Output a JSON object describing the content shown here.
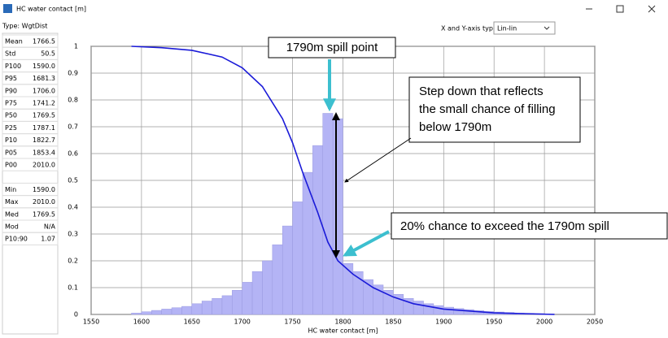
{
  "window": {
    "title": "HC water contact [m]",
    "type_label": "Type: WgtDist",
    "axis_types_label": "X and Y-axis types",
    "axis_types_value": "Lin-lin"
  },
  "stats": {
    "groups": [
      [
        [
          "Mean",
          "1766.5"
        ],
        [
          "Std",
          "50.5"
        ],
        [
          "P100",
          "1590.0"
        ],
        [
          "P95",
          "1681.3"
        ],
        [
          "P90",
          "1706.0"
        ],
        [
          "P75",
          "1741.2"
        ],
        [
          "P50",
          "1769.5"
        ],
        [
          "P25",
          "1787.1"
        ],
        [
          "P10",
          "1822.7"
        ],
        [
          "P05",
          "1853.4"
        ],
        [
          "P00",
          "2010.0"
        ]
      ],
      [
        [
          "Min",
          "1590.0"
        ],
        [
          "Max",
          "2010.0"
        ],
        [
          "Med",
          "1769.5"
        ],
        [
          "Mod",
          "N/A"
        ],
        [
          "P10:90",
          "1.07"
        ]
      ]
    ]
  },
  "chart_data": {
    "type": "histogram",
    "xlabel": "HC water contact [m]",
    "bins": [
      1590,
      1600,
      1610,
      1620,
      1630,
      1640,
      1650,
      1660,
      1670,
      1680,
      1690,
      1700,
      1710,
      1720,
      1730,
      1740,
      1750,
      1760,
      1770,
      1780,
      1790,
      1800,
      1810,
      1820,
      1830,
      1840,
      1850,
      1860,
      1870,
      1880,
      1890,
      1900,
      1910,
      1920,
      1930,
      1940,
      1950,
      1960,
      1970,
      1980,
      1990,
      2000,
      2010
    ],
    "values": [
      0.005,
      0.01,
      0.015,
      0.02,
      0.025,
      0.03,
      0.04,
      0.05,
      0.06,
      0.07,
      0.09,
      0.12,
      0.16,
      0.2,
      0.26,
      0.33,
      0.42,
      0.53,
      0.63,
      0.75,
      0.73,
      0.19,
      0.16,
      0.13,
      0.11,
      0.09,
      0.075,
      0.06,
      0.05,
      0.04,
      0.033,
      0.027,
      0.022,
      0.018,
      0.014,
      0.011,
      0.009,
      0.007,
      0.005,
      0.004,
      0.003,
      0.002
    ],
    "color": "#b4b4f5",
    "curve": {
      "x": [
        1590,
        1620,
        1650,
        1680,
        1700,
        1720,
        1740,
        1750,
        1760,
        1765,
        1775,
        1785,
        1795,
        1810,
        1830,
        1850,
        1870,
        1900,
        1950,
        2010
      ],
      "values": [
        1,
        0.995,
        0.985,
        0.96,
        0.92,
        0.85,
        0.73,
        0.64,
        0.53,
        0.48,
        0.38,
        0.27,
        0.2,
        0.15,
        0.1,
        0.065,
        0.04,
        0.02,
        0.006,
        0
      ],
      "color": "#1a1ad8"
    },
    "xlim": [
      1550,
      2050
    ],
    "xticks": [
      1550,
      1600,
      1650,
      1700,
      1750,
      1800,
      1850,
      1900,
      1950,
      2000,
      2050
    ],
    "ylim": [
      0,
      1
    ],
    "yticks": [
      0,
      0.1,
      0.2,
      0.3,
      0.4,
      0.5,
      0.6,
      0.7,
      0.8,
      0.9,
      1
    ],
    "grid": true,
    "annotations": [
      {
        "text": "1790m spill point"
      },
      {
        "lines": [
          "Step down that reflects",
          "the small chance of filling",
          "below 1790m"
        ]
      },
      {
        "text": "20% chance to exceed the 1790m spill"
      }
    ]
  }
}
